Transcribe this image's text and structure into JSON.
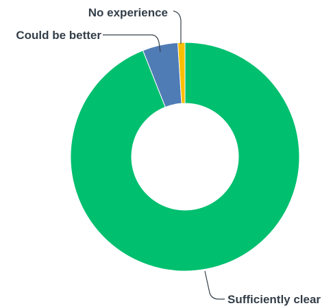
{
  "chart_data": {
    "type": "pie",
    "donut": true,
    "title": "",
    "categories": [
      "Sufficiently clear",
      "Could be better",
      "No experience"
    ],
    "values": [
      94.0,
      5.0,
      1.0
    ],
    "unit": "%",
    "colors": [
      "#00bf6f",
      "#507cb6",
      "#f9be00"
    ],
    "legend": "none",
    "labels_on_chart": true
  }
}
